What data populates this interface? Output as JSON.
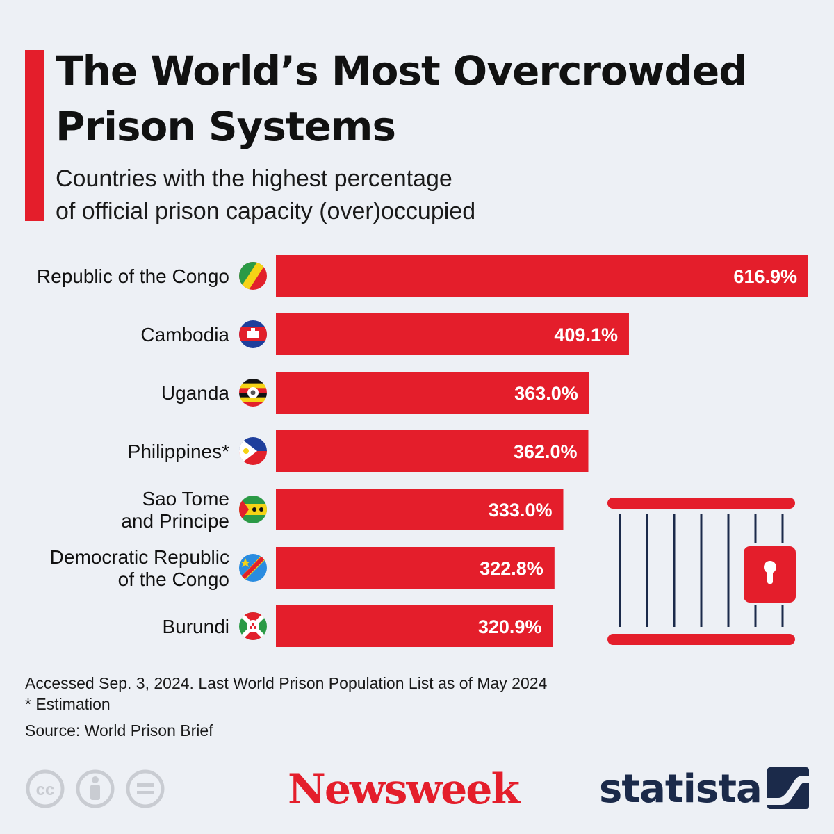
{
  "header": {
    "title_line1": "The World’s Most Overcrowded",
    "title_line2": "Prison Systems",
    "subtitle_line1": "Countries with the highest percentage",
    "subtitle_line2": "of official prison capacity (over)occupied"
  },
  "chart_data": {
    "type": "bar",
    "orientation": "horizontal",
    "title": "The World’s Most Overcrowded Prison Systems",
    "subtitle": "Countries with the highest percentage of official prison capacity (over)occupied",
    "categories": [
      [
        "Republic of the Congo"
      ],
      [
        "Cambodia"
      ],
      [
        "Uganda"
      ],
      [
        "Philippines*"
      ],
      [
        "Sao Tome",
        "and Principe"
      ],
      [
        "Democratic Republic",
        "of the Congo"
      ],
      [
        "Burundi"
      ]
    ],
    "values": [
      616.9,
      409.1,
      363.0,
      362.0,
      333.0,
      322.8,
      320.9
    ],
    "value_labels": [
      "616.9%",
      "409.1%",
      "363.0%",
      "362.0%",
      "333.0%",
      "322.8%",
      "320.9%"
    ],
    "flags": [
      "congo-flag-icon",
      "cambodia-flag-icon",
      "uganda-flag-icon",
      "philippines-flag-icon",
      "sao-tome-flag-icon",
      "drc-flag-icon",
      "burundi-flag-icon"
    ],
    "bar_color": "#e41e2b",
    "xlim": [
      0,
      616.9
    ],
    "grid": false,
    "legend": "none"
  },
  "footer": {
    "note": "Accessed Sep. 3, 2024. Last World Prison Population List as of May 2024",
    "estimation": "* Estimation",
    "source": "Source: World Prison Brief",
    "brand_newsweek": "Newsweek",
    "brand_statista": "statista"
  },
  "colors": {
    "accent": "#e41e2b",
    "background": "#edf0f5",
    "navy": "#1b2a4a",
    "icon_grey": "#c9ccd2"
  }
}
